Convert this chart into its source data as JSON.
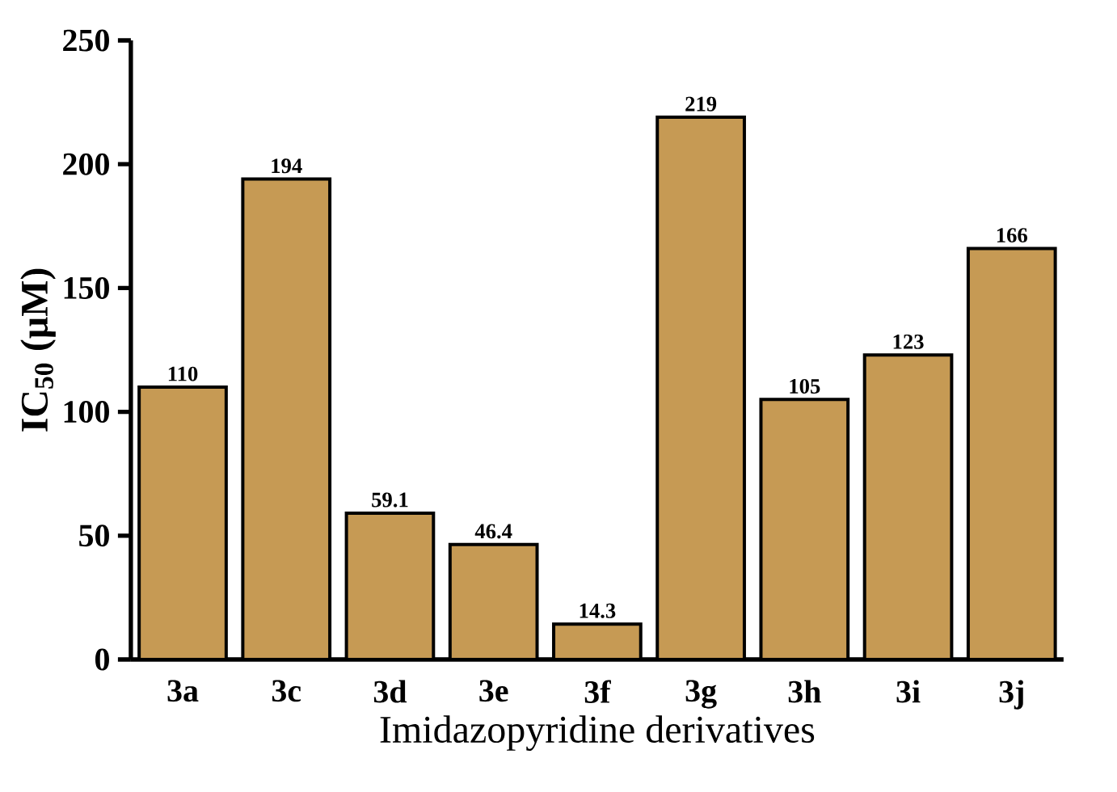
{
  "chart_data": {
    "type": "bar",
    "xlabel": "Imidazopyridine derivatives",
    "ylabel": "IC$_{50}$ (μM)",
    "categories": [
      "3a",
      "3c",
      "3d",
      "3e",
      "3f",
      "3g",
      "3h",
      "3i",
      "3j"
    ],
    "values": [
      110,
      194,
      59.1,
      46.4,
      14.3,
      219,
      105,
      123,
      166
    ],
    "color": "#c69a54",
    "ylim": [
      0,
      250
    ],
    "yticks": [
      0,
      50,
      100,
      150,
      200,
      250
    ],
    "data_labels": true,
    "grid": false
  }
}
